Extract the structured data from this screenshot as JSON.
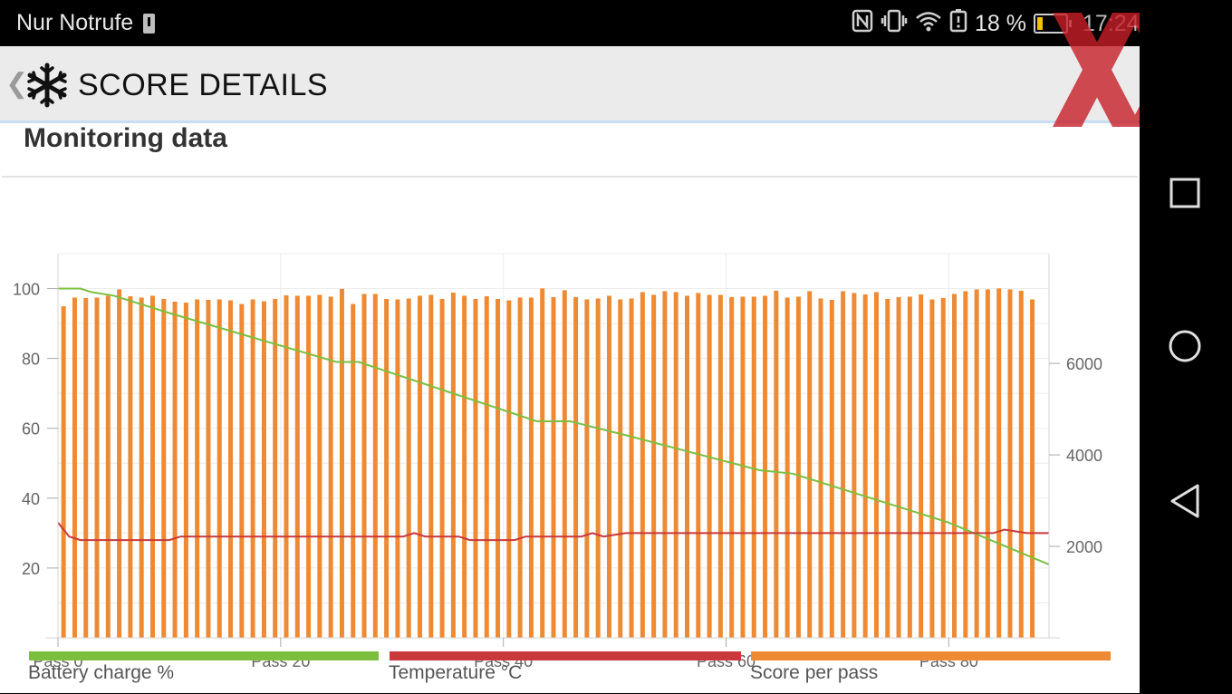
{
  "status_bar": {
    "carrier": "Nur Notrufe",
    "battery_percent": "18 %",
    "time": "17:24"
  },
  "app_bar": {
    "title": "SCORE DETAILS",
    "back_icon": "chevron-left-icon",
    "logo_icon": "snowflake-icon"
  },
  "section": {
    "title": "Monitoring data"
  },
  "colors": {
    "battery": "#7cbf3f",
    "temperature": "#c9393b",
    "score": "#ee8a33"
  },
  "chart_data": {
    "type": "bar",
    "x_ticks": [
      0,
      20,
      40,
      60,
      80
    ],
    "x_tick_labels": [
      "Pass 0",
      "Pass 20",
      "Pass 40",
      "Pass 60",
      "Pass 80"
    ],
    "x_range": [
      0,
      89
    ],
    "left_axis": {
      "range": [
        0,
        110
      ],
      "ticks": [
        20,
        40,
        60,
        80,
        100
      ],
      "tick_labels": [
        "20",
        "40",
        "60",
        "80",
        "100"
      ]
    },
    "right_axis": {
      "range": [
        0,
        8400
      ],
      "ticks": [
        2000,
        4000,
        6000
      ],
      "tick_labels": [
        "2000",
        "4000",
        "6000"
      ]
    },
    "grid": true,
    "legend_position": "bottom",
    "series": [
      {
        "name": "Score per pass",
        "kind": "bar",
        "axis": "right",
        "values": [
          7250,
          7440,
          7430,
          7440,
          7480,
          7620,
          7470,
          7440,
          7480,
          7410,
          7350,
          7330,
          7400,
          7390,
          7400,
          7380,
          7300,
          7400,
          7360,
          7410,
          7490,
          7480,
          7480,
          7500,
          7460,
          7630,
          7300,
          7520,
          7520,
          7410,
          7400,
          7420,
          7480,
          7500,
          7410,
          7550,
          7480,
          7410,
          7470,
          7410,
          7380,
          7440,
          7440,
          7640,
          7450,
          7600,
          7450,
          7400,
          7420,
          7480,
          7400,
          7420,
          7560,
          7500,
          7580,
          7560,
          7480,
          7540,
          7500,
          7500,
          7450,
          7460,
          7460,
          7480,
          7590,
          7440,
          7460,
          7580,
          7420,
          7390,
          7580,
          7540,
          7510,
          7560,
          7410,
          7450,
          7460,
          7510,
          7400,
          7430,
          7520,
          7580,
          7620,
          7620,
          7640,
          7620,
          7590,
          7400
        ]
      },
      {
        "name": "Battery charge %",
        "kind": "line",
        "axis": "left",
        "points": [
          [
            0,
            100
          ],
          [
            2,
            100
          ],
          [
            3,
            99
          ],
          [
            5,
            98
          ],
          [
            8,
            95
          ],
          [
            10,
            93
          ],
          [
            25,
            79
          ],
          [
            27,
            79
          ],
          [
            43,
            62
          ],
          [
            46,
            62
          ],
          [
            51,
            58
          ],
          [
            63,
            48
          ],
          [
            66,
            47
          ],
          [
            80,
            33
          ],
          [
            89,
            21
          ]
        ]
      },
      {
        "name": "Temperature °C",
        "kind": "line",
        "axis": "left",
        "points": [
          [
            0,
            33
          ],
          [
            1,
            29
          ],
          [
            2,
            28
          ],
          [
            3,
            28
          ],
          [
            10,
            28
          ],
          [
            11,
            29
          ],
          [
            31,
            29
          ],
          [
            32,
            30
          ],
          [
            33,
            29
          ],
          [
            36,
            29
          ],
          [
            37,
            28
          ],
          [
            41,
            28
          ],
          [
            42,
            29
          ],
          [
            44,
            29
          ],
          [
            45,
            29
          ],
          [
            47,
            29
          ],
          [
            48,
            30
          ],
          [
            49,
            29
          ],
          [
            51,
            30
          ],
          [
            84,
            30
          ],
          [
            85,
            31
          ],
          [
            87,
            30
          ],
          [
            89,
            30
          ]
        ]
      }
    ]
  },
  "legend": [
    {
      "label": "Battery charge %"
    },
    {
      "label": "Temperature °C"
    },
    {
      "label": "Score per pass"
    }
  ],
  "nav_bar": {
    "recents_icon": "square-icon",
    "home_icon": "circle-icon",
    "back_icon": "triangle-back-icon"
  }
}
